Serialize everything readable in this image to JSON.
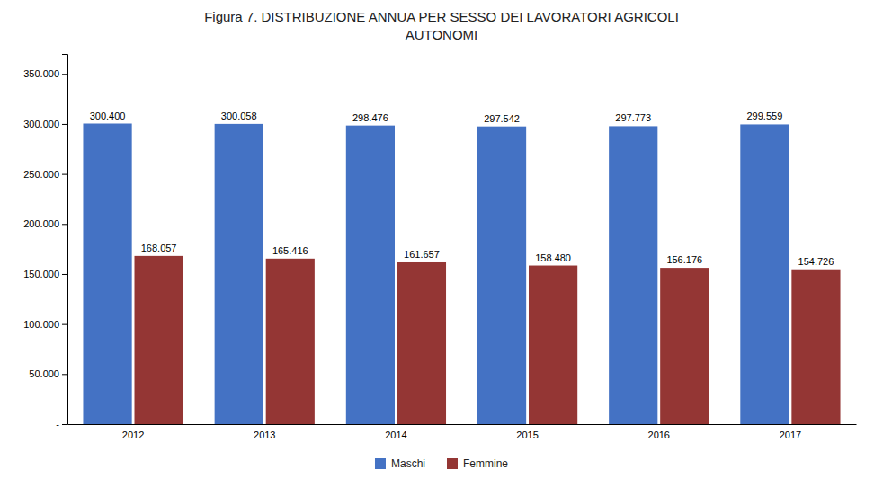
{
  "chart_data": {
    "type": "bar",
    "title": "Figura 7. DISTRIBUZIONE ANNUA PER SESSO DEI LAVORATORI AGRICOLI\nAUTONOMI",
    "categories": [
      "2012",
      "2013",
      "2014",
      "2015",
      "2016",
      "2017"
    ],
    "series": [
      {
        "name": "Maschi",
        "color": "#4472C4",
        "values": [
          300400,
          300058,
          298476,
          297542,
          297773,
          299559
        ],
        "value_labels": [
          "300.400",
          "300.058",
          "298.476",
          "297.542",
          "297.773",
          "299.559"
        ]
      },
      {
        "name": "Femmine",
        "color": "#943634",
        "values": [
          168057,
          165416,
          161657,
          158480,
          156176,
          154726
        ],
        "value_labels": [
          "168.057",
          "165.416",
          "161.657",
          "158.480",
          "156.176",
          "154.726"
        ]
      }
    ],
    "ylim": [
      0,
      370000
    ],
    "yticks": [
      {
        "value": 0,
        "label": "-"
      },
      {
        "value": 50000,
        "label": "50.000"
      },
      {
        "value": 100000,
        "label": "100.000"
      },
      {
        "value": 150000,
        "label": "150.000"
      },
      {
        "value": 200000,
        "label": "200.000"
      },
      {
        "value": 250000,
        "label": "250.000"
      },
      {
        "value": 300000,
        "label": "300.000"
      },
      {
        "value": 350000,
        "label": "350.000"
      }
    ],
    "grid": false,
    "legend": "bottom",
    "data_labels": true
  }
}
